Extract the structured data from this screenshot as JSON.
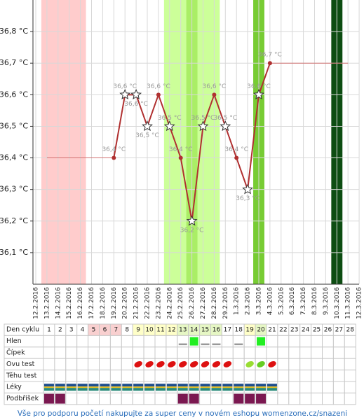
{
  "chart_data": {
    "type": "line",
    "categories": [
      "12.2.2016",
      "13.2.2016",
      "14.2.2016",
      "15.2.2016",
      "16.2.2016",
      "17.2.2016",
      "18.2.2016",
      "19.2.2016",
      "20.2.2016",
      "21.2.2016",
      "22.2.2016",
      "23.2.2016",
      "24.2.2016",
      "25.2.2016",
      "26.2.2016",
      "27.2.2016",
      "28.2.2016",
      "29.2.2016",
      "1.3.2016",
      "2.3.2016",
      "3.3.2016",
      "4.3.2016",
      "5.3.2016",
      "6.3.2016",
      "7.3.2016",
      "8.3.2016",
      "9.3.2016",
      "10.3.2016",
      "11.3.2016",
      "12.3.2016"
    ],
    "ylim": [
      36.0,
      36.9
    ],
    "yticks": [
      {
        "value": 36.1,
        "label": "36,1 °C"
      },
      {
        "value": 36.2,
        "label": "36,2 °C"
      },
      {
        "value": 36.3,
        "label": "36,3 °C"
      },
      {
        "value": 36.4,
        "label": "36,4 °C"
      },
      {
        "value": 36.5,
        "label": "36,5 °C"
      },
      {
        "value": 36.6,
        "label": "36,6 °C"
      },
      {
        "value": 36.7,
        "label": "36,7 °C"
      },
      {
        "value": 36.8,
        "label": "36,8 °C"
      }
    ],
    "grid": true,
    "bands": [
      {
        "from": "13.2.2016",
        "to": "16.2.2016",
        "color": "#ffcccc"
      },
      {
        "from": "24.2.2016",
        "to": "28.2.2016",
        "color": "#ccff99"
      },
      {
        "from": "26.2.2016",
        "to": "26.2.2016",
        "color": "#aaee66"
      },
      {
        "from": "3.3.2016",
        "to": "3.3.2016",
        "color": "#77cc33"
      },
      {
        "from": "10.3.2016",
        "to": "10.3.2016",
        "color": "#0d4d12"
      }
    ],
    "series": [
      {
        "color": "#b03030",
        "values": [
          null,
          null,
          null,
          null,
          null,
          null,
          null,
          36.4,
          36.6,
          36.6,
          36.5,
          36.6,
          36.5,
          36.4,
          36.2,
          36.5,
          36.6,
          36.5,
          36.4,
          36.3,
          36.6,
          36.7,
          null,
          null,
          null,
          null,
          null,
          null,
          null,
          null
        ],
        "value_labels": [
          null,
          null,
          null,
          null,
          null,
          null,
          null,
          "36,4 °C",
          "36,6 °C",
          "36,6 °C",
          "36,5 °C",
          "36,6 °C",
          "36,5 °C",
          "36,4 °C",
          "36,2 °C",
          "36,5 °C",
          "36,6 °C",
          "36,5 °C",
          "36,4 °C",
          "36,3 °C",
          "36,6 °C",
          "36,7 °C",
          null,
          null,
          null,
          null,
          null,
          null,
          null,
          null
        ],
        "markers": [
          null,
          null,
          null,
          null,
          null,
          null,
          null,
          "dot",
          "star",
          "star",
          "star",
          "dot",
          "star",
          "dot",
          "star",
          "star",
          "dot",
          "star",
          "dot",
          "star",
          "star",
          "dot",
          null,
          null,
          null,
          null,
          null,
          null,
          null,
          null
        ],
        "label_positions": [
          null,
          null,
          null,
          null,
          null,
          null,
          null,
          "above",
          "above",
          "below",
          "below",
          "above",
          "above",
          "above",
          "below",
          "above",
          "above",
          "above",
          "above",
          "below",
          "above",
          "above",
          null,
          null,
          null,
          null,
          null,
          null,
          null,
          null
        ]
      },
      {
        "color": "#d07070",
        "values": [
          null,
          36.4,
          36.4,
          36.4,
          36.4,
          36.4,
          36.4,
          36.4,
          null,
          null,
          null,
          null,
          null,
          null,
          null,
          null,
          null,
          null,
          null,
          null,
          null,
          36.7,
          36.7,
          36.7,
          36.7,
          36.7,
          36.7,
          36.7,
          36.7,
          null
        ]
      }
    ]
  },
  "table": {
    "row_labels": [
      "Den cyklu",
      "Hlen",
      "Čípek",
      "Ovu test",
      "Těhu test",
      "Léky",
      "Podbříšek"
    ],
    "days": [
      1,
      2,
      3,
      4,
      5,
      6,
      7,
      8,
      9,
      10,
      11,
      12,
      13,
      14,
      15,
      16,
      17,
      18,
      19,
      20,
      21,
      22,
      23,
      24,
      25,
      26,
      27,
      28
    ],
    "day_colors": [
      null,
      null,
      null,
      null,
      "#f9d0d0",
      "#f9d0d0",
      "#f9d0d0",
      null,
      "#ffffc8",
      "#ffffc8",
      "#ffffc8",
      "#ffffc8",
      "#e6f7c4",
      "#e6f7c4",
      "#e6f7c4",
      "#e6f7c4",
      null,
      null,
      "#ffffc8",
      "#e6f7c4",
      null,
      null,
      null,
      null,
      null,
      null,
      null,
      null
    ],
    "hlen": [
      null,
      null,
      null,
      null,
      null,
      null,
      null,
      null,
      null,
      null,
      null,
      null,
      "dash",
      "square",
      "dash",
      "dash",
      null,
      "dash",
      null,
      "square",
      null,
      null,
      null,
      null,
      null,
      null,
      null,
      null
    ],
    "ovu_test": [
      null,
      null,
      null,
      null,
      null,
      null,
      null,
      null,
      "#dd1111",
      "#dd1111",
      "#dd1111",
      "#dd1111",
      "#dd1111",
      "#dd1111",
      "#dd1111",
      "#dd1111",
      "#dd1111",
      null,
      "#99dd33",
      "#66cc22",
      "#dd1111",
      null,
      null,
      null,
      null,
      null,
      null,
      null
    ],
    "leky": [
      true,
      true,
      true,
      true,
      true,
      true,
      true,
      true,
      true,
      true,
      true,
      true,
      true,
      true,
      true,
      true,
      true,
      true,
      true,
      true,
      true,
      null,
      null,
      null,
      null,
      null,
      null,
      null
    ],
    "podbrisek": [
      true,
      true,
      null,
      null,
      null,
      null,
      null,
      null,
      null,
      null,
      null,
      null,
      true,
      true,
      null,
      null,
      null,
      true,
      true,
      true,
      null,
      null,
      null,
      null,
      null,
      null,
      null,
      null
    ]
  },
  "footer": "Vše pro podporu početí nakupujte za super ceny v novém eshopu womenzone.cz/snazeni"
}
